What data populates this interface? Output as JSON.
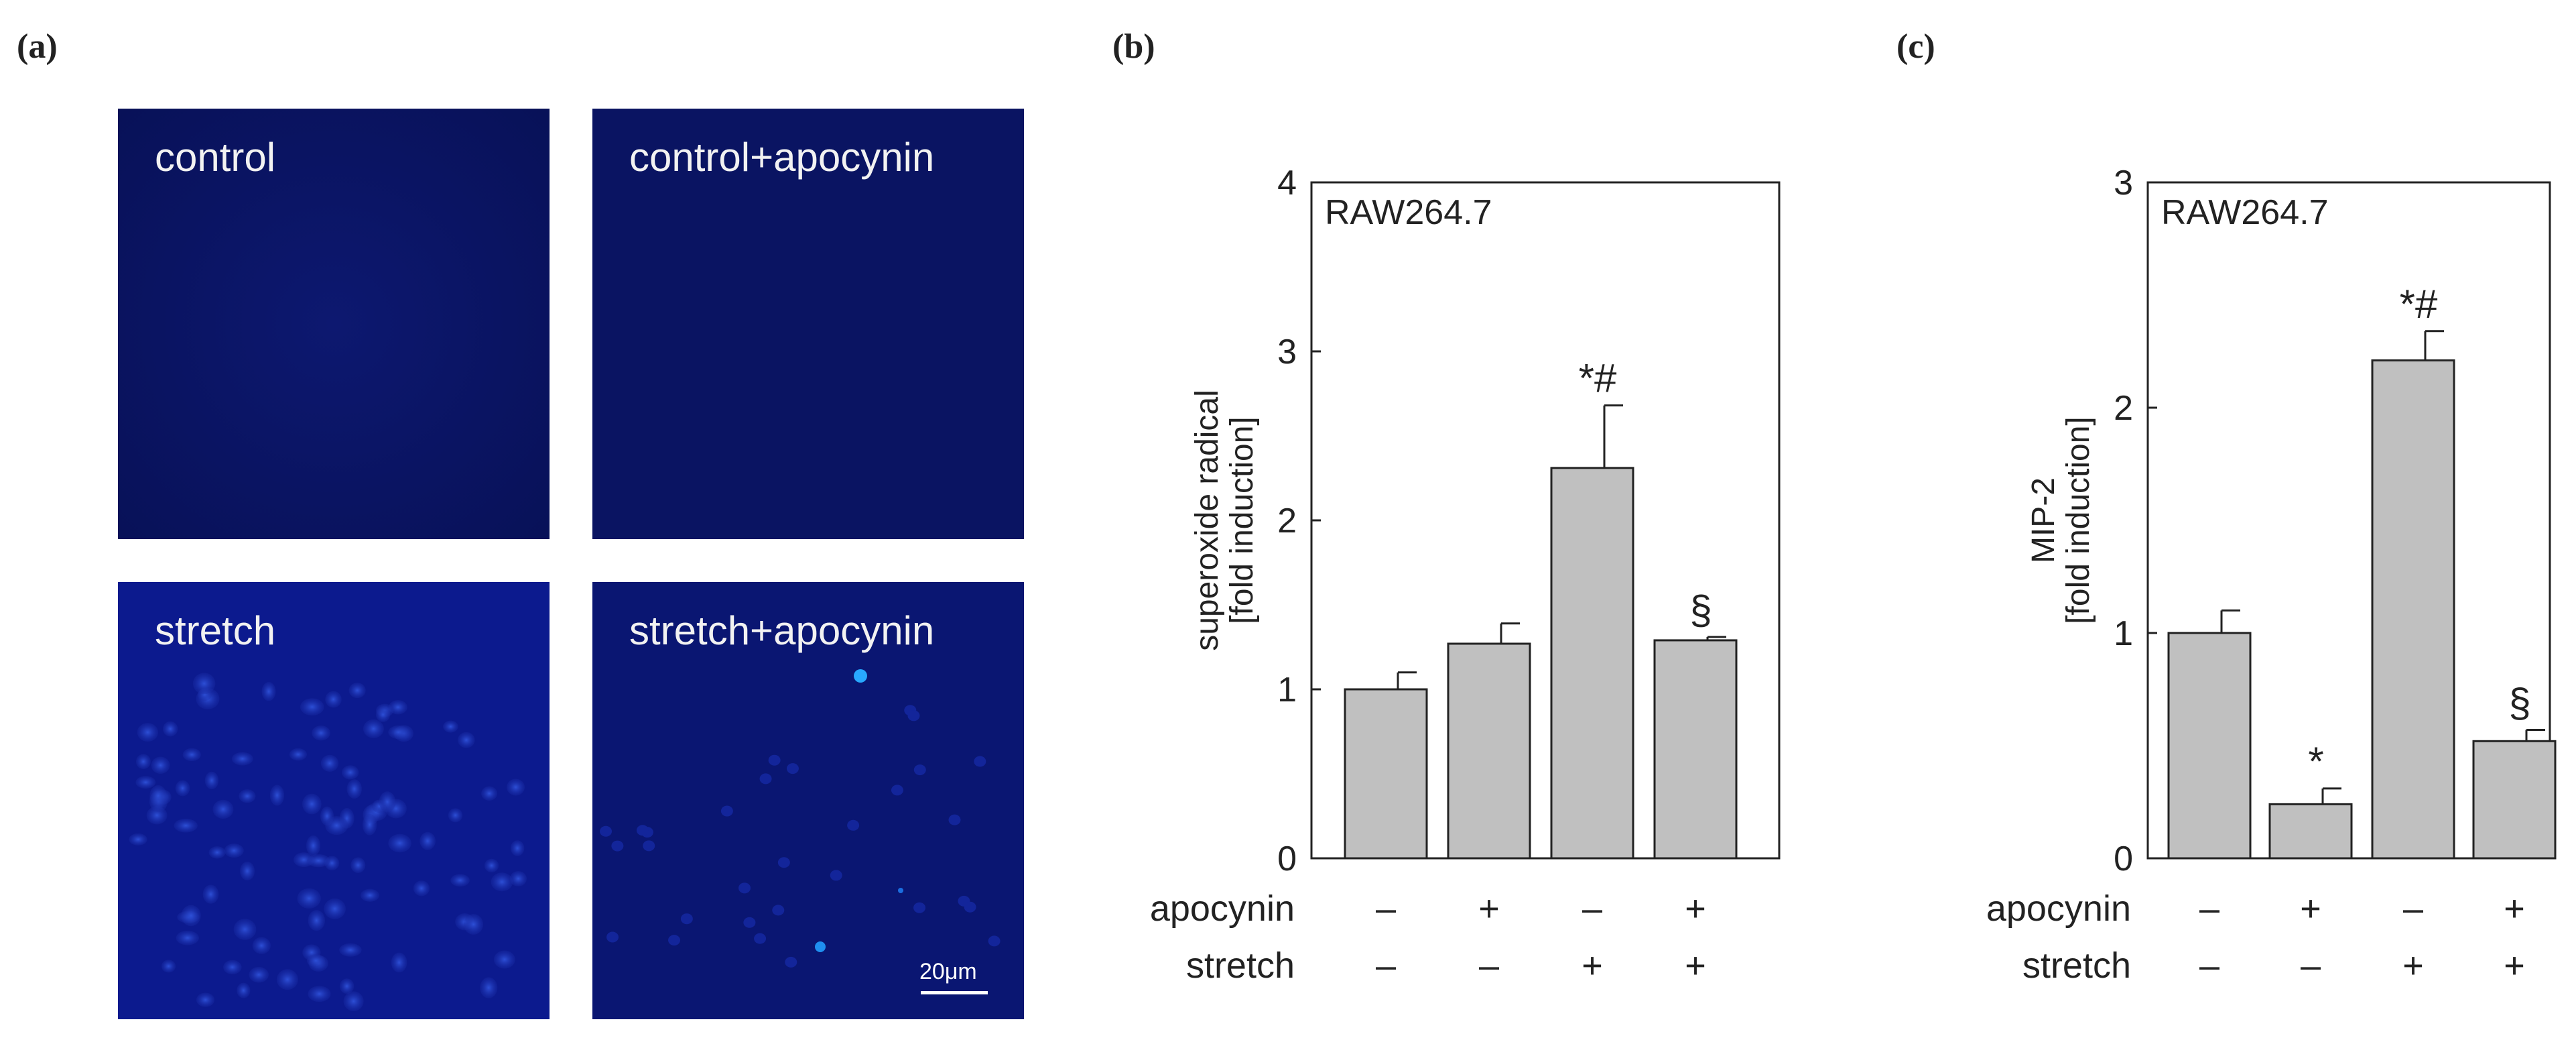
{
  "panel_labels": {
    "a": "(a)",
    "b": "(b)",
    "c": "(c)"
  },
  "micrographs": [
    {
      "label": "control",
      "bright": false
    },
    {
      "label": "control+apocynin",
      "bright": false
    },
    {
      "label": "stretch",
      "bright": true
    },
    {
      "label": "stretch+apocynin",
      "bright": false,
      "sparse": true,
      "scale_bar": "20μm"
    }
  ],
  "conditions": {
    "row1_label": "apocynin",
    "row2_label": "stretch",
    "apocynin": [
      "–",
      "+",
      "–",
      "+"
    ],
    "stretch": [
      "–",
      "–",
      "+",
      "+"
    ]
  },
  "chart_data": [
    {
      "type": "bar",
      "panel": "b",
      "annotation": "RAW264.7",
      "ylabel": [
        "superoxide radical",
        "[fold induction]"
      ],
      "ylim": [
        0,
        4
      ],
      "yticks": [
        0,
        1,
        2,
        3,
        4
      ],
      "values": [
        1.0,
        1.27,
        2.31,
        1.29
      ],
      "errors": [
        0.1,
        0.12,
        0.37,
        0.02
      ],
      "markers": [
        "",
        "",
        "*#",
        "§"
      ],
      "bar_color": "#c0c0c0"
    },
    {
      "type": "bar",
      "panel": "c",
      "annotation": "RAW264.7",
      "ylabel": [
        "MIP-2",
        "[fold induction]"
      ],
      "ylim": [
        0,
        3
      ],
      "yticks": [
        0,
        1,
        2,
        3
      ],
      "values": [
        1.0,
        0.24,
        2.21,
        0.52
      ],
      "errors": [
        0.1,
        0.07,
        0.13,
        0.05
      ],
      "markers": [
        "",
        "*",
        "*#",
        "§"
      ],
      "bar_color": "#c0c0c0"
    }
  ]
}
